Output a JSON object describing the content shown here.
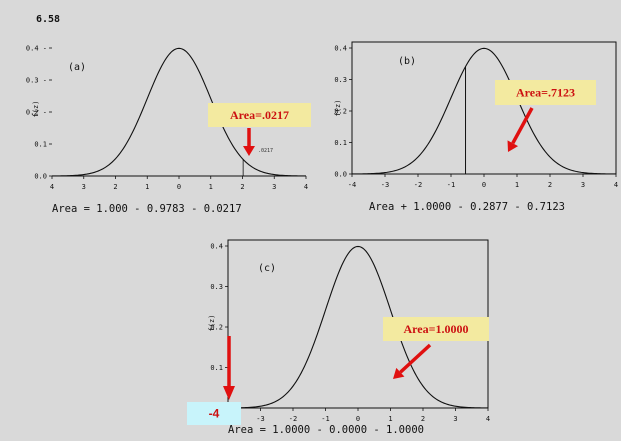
{
  "problem_number": "6.58",
  "colors": {
    "background": "#d9d9d9",
    "callout_fill": "#f3eaa0",
    "arrow": "#e01010",
    "marker_fill": "#c8f4fb",
    "curve": "#111111"
  },
  "chart_data": [
    {
      "type": "line",
      "panel_label": "(a)",
      "ylabel": "f(z)",
      "x_ticks": [
        "4",
        "3",
        "2",
        "1",
        "0",
        "1",
        "2",
        "3",
        "4"
      ],
      "y_ticks": [
        "0.0",
        "0.1",
        "0.2 -",
        "0.3 -",
        "0.4 -"
      ],
      "xlim": [
        -4,
        4
      ],
      "ylim": [
        0,
        0.4
      ],
      "series": [
        {
          "distribution": "standard normal",
          "mean": 0,
          "sd": 1
        }
      ],
      "shaded_from_z": 2.02,
      "area_annotation": "Area=.0217",
      "small_annotation": ".0217",
      "caption": "Area = 1.000 - 0.9783 - 0.0217"
    },
    {
      "type": "line",
      "panel_label": "(b)",
      "ylabel": "f(z)",
      "x_ticks": [
        "-4",
        "-3",
        "-2",
        "-1",
        "0",
        "1",
        "2",
        "3",
        "4"
      ],
      "y_ticks": [
        "0.0",
        "0.1",
        "0.2",
        "0.3",
        "0.4"
      ],
      "xlim": [
        -4,
        4
      ],
      "ylim": [
        0,
        0.4
      ],
      "series": [
        {
          "distribution": "standard normal",
          "mean": 0,
          "sd": 1
        }
      ],
      "vertical_line_z": -0.56,
      "area_annotation": "Area=.7123",
      "small_annotation": ".7123",
      "caption": "Area + 1.0000 - 0.2877 - 0.7123"
    },
    {
      "type": "line",
      "panel_label": "(c)",
      "ylabel": "f(z)",
      "x_ticks": [
        "-4",
        "-3",
        "-2",
        "-1",
        "0",
        "1",
        "2",
        "3",
        "4"
      ],
      "y_ticks": [
        "0.0",
        "0.1",
        "0.2",
        "0.3",
        "0.4"
      ],
      "xlim": [
        -4,
        4
      ],
      "ylim": [
        0,
        0.4
      ],
      "series": [
        {
          "distribution": "standard normal",
          "mean": 0,
          "sd": 1
        }
      ],
      "area_annotation": "Area=1.0000",
      "marker_label": "-4",
      "caption": "Area = 1.0000 - 0.0000 - 1.0000"
    }
  ]
}
